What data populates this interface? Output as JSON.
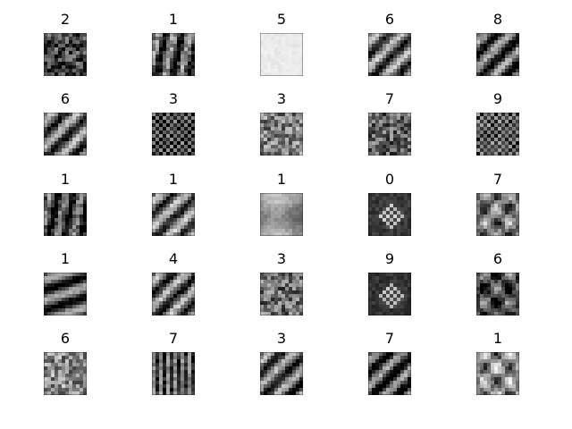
{
  "title": "",
  "rows": 5,
  "cols": 5,
  "labels": [
    "2",
    "1",
    "5",
    "6",
    "8",
    "6",
    "3",
    "3",
    "7",
    "9",
    "1",
    "1",
    "1",
    "0",
    "7",
    "1",
    "4",
    "3",
    "9",
    "6",
    "6",
    "7",
    "3",
    "7",
    "1"
  ],
  "tiles": [
    {
      "pattern": "grain",
      "tone": 0.28
    },
    {
      "pattern": "streaks",
      "tone": 0.32
    },
    {
      "pattern": "flat",
      "tone": 0.92
    },
    {
      "pattern": "diagonal",
      "tone": 0.42
    },
    {
      "pattern": "diagonal",
      "tone": 0.34
    },
    {
      "pattern": "diagonal",
      "tone": 0.4
    },
    {
      "pattern": "dots",
      "tone": 0.22
    },
    {
      "pattern": "grain",
      "tone": 0.5
    },
    {
      "pattern": "grain",
      "tone": 0.38
    },
    {
      "pattern": "dots",
      "tone": 0.3
    },
    {
      "pattern": "streaks",
      "tone": 0.25
    },
    {
      "pattern": "diagonal",
      "tone": 0.45
    },
    {
      "pattern": "smooth",
      "tone": 0.58
    },
    {
      "pattern": "center",
      "tone": 0.22
    },
    {
      "pattern": "blobs",
      "tone": 0.46
    },
    {
      "pattern": "waves",
      "tone": 0.33
    },
    {
      "pattern": "diagonal",
      "tone": 0.4
    },
    {
      "pattern": "grain",
      "tone": 0.42
    },
    {
      "pattern": "center",
      "tone": 0.2
    },
    {
      "pattern": "blobs",
      "tone": 0.3
    },
    {
      "pattern": "grain",
      "tone": 0.55
    },
    {
      "pattern": "vertical",
      "tone": 0.3
    },
    {
      "pattern": "diagonal",
      "tone": 0.38
    },
    {
      "pattern": "diagonal",
      "tone": 0.3
    },
    {
      "pattern": "blobs",
      "tone": 0.55
    }
  ]
}
